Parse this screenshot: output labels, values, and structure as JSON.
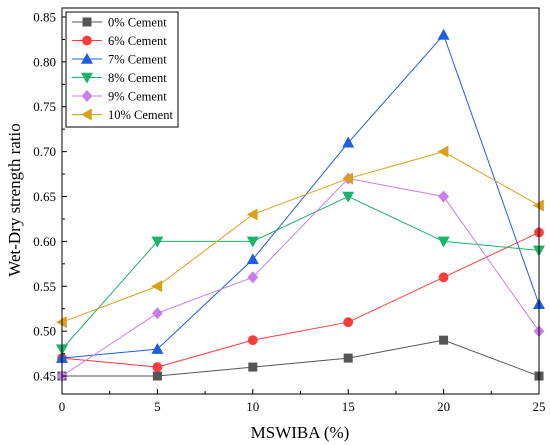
{
  "chart_data": {
    "type": "line",
    "xlabel": "MSWIBA (%)",
    "ylabel": "Wet-Dry strength ratio",
    "xlim": [
      0,
      25
    ],
    "ylim": [
      0.43,
      0.86
    ],
    "x_ticks": [
      "0",
      "5",
      "10",
      "15",
      "20",
      "25"
    ],
    "y_ticks": [
      "0.45",
      "0.50",
      "0.55",
      "0.60",
      "0.65",
      "0.70",
      "0.75",
      "0.80",
      "0.85"
    ],
    "x": [
      0,
      5,
      10,
      15,
      20,
      25
    ],
    "grid": false,
    "legend_position": "top-left",
    "series": [
      {
        "name": "0% Cement",
        "color": "#555555",
        "marker": "square",
        "values": [
          0.45,
          0.45,
          0.46,
          0.47,
          0.49,
          0.45
        ]
      },
      {
        "name": "6% Cement",
        "color": "#ff3b3b",
        "marker": "circle",
        "values": [
          0.47,
          0.46,
          0.49,
          0.51,
          0.56,
          0.61
        ]
      },
      {
        "name": "7% Cement",
        "color": "#1f5fe0",
        "marker": "triangle-up",
        "values": [
          0.47,
          0.48,
          0.58,
          0.71,
          0.83,
          0.53
        ]
      },
      {
        "name": "8% Cement",
        "color": "#1db36a",
        "marker": "triangle-down",
        "values": [
          0.48,
          0.6,
          0.6,
          0.65,
          0.6,
          0.59
        ]
      },
      {
        "name": "9% Cement",
        "color": "#c77df0",
        "marker": "diamond",
        "values": [
          0.45,
          0.52,
          0.56,
          0.67,
          0.65,
          0.5
        ]
      },
      {
        "name": "10% Cement",
        "color": "#d9a21c",
        "marker": "triangle-left",
        "values": [
          0.51,
          0.55,
          0.63,
          0.67,
          0.7,
          0.64
        ]
      }
    ]
  }
}
